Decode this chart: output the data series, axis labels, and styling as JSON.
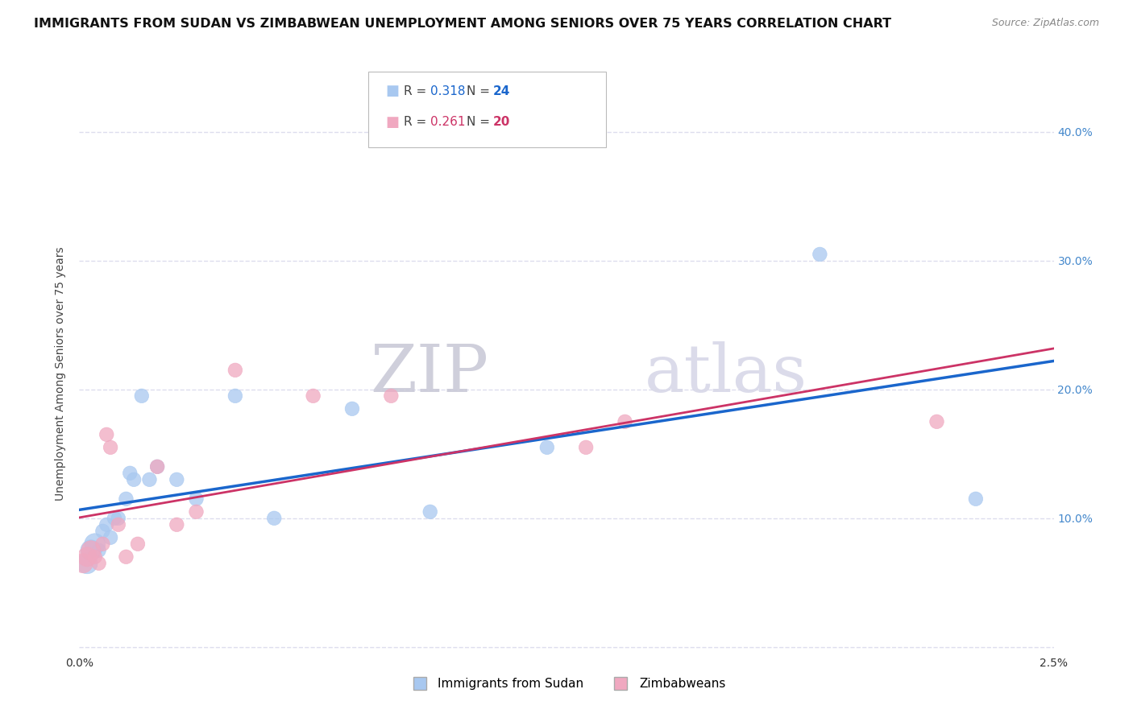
{
  "title": "IMMIGRANTS FROM SUDAN VS ZIMBABWEAN UNEMPLOYMENT AMONG SENIORS OVER 75 YEARS CORRELATION CHART",
  "source": "Source: ZipAtlas.com",
  "ylabel": "Unemployment Among Seniors over 75 years",
  "legend_labels": [
    "Immigrants from Sudan",
    "Zimbabweans"
  ],
  "blue_r": "0.318",
  "blue_n": "24",
  "pink_r": "0.261",
  "pink_n": "20",
  "blue_color": "#A8C8F0",
  "pink_color": "#F0A8C0",
  "blue_line_color": "#1A66CC",
  "pink_line_color": "#CC3366",
  "right_axis_color": "#4488CC",
  "xlim": [
    0.0,
    0.025
  ],
  "ylim": [
    -0.005,
    0.43
  ],
  "yticks": [
    0.0,
    0.1,
    0.2,
    0.3,
    0.4
  ],
  "blue_scatter_x": [
    0.0002,
    0.0003,
    0.0004,
    0.0005,
    0.0006,
    0.0007,
    0.0008,
    0.0009,
    0.001,
    0.0012,
    0.0013,
    0.0014,
    0.0016,
    0.0018,
    0.002,
    0.0025,
    0.003,
    0.004,
    0.005,
    0.007,
    0.009,
    0.012,
    0.019,
    0.023
  ],
  "blue_scatter_y": [
    0.065,
    0.075,
    0.08,
    0.075,
    0.09,
    0.095,
    0.085,
    0.1,
    0.1,
    0.115,
    0.135,
    0.13,
    0.195,
    0.13,
    0.14,
    0.13,
    0.115,
    0.195,
    0.1,
    0.185,
    0.105,
    0.155,
    0.305,
    0.115
  ],
  "pink_scatter_x": [
    0.0001,
    0.0002,
    0.0003,
    0.0004,
    0.0005,
    0.0006,
    0.0007,
    0.0008,
    0.001,
    0.0012,
    0.0015,
    0.002,
    0.0025,
    0.003,
    0.004,
    0.006,
    0.008,
    0.013,
    0.014,
    0.022
  ],
  "pink_scatter_y": [
    0.065,
    0.07,
    0.075,
    0.07,
    0.065,
    0.08,
    0.165,
    0.155,
    0.095,
    0.07,
    0.08,
    0.14,
    0.095,
    0.105,
    0.215,
    0.195,
    0.195,
    0.155,
    0.175,
    0.175
  ],
  "background_color": "#FFFFFF",
  "grid_color": "#DDDDEE",
  "watermark_zip": "ZIP",
  "watermark_atlas": "atlas",
  "title_fontsize": 11.5,
  "axis_label_fontsize": 10,
  "tick_fontsize": 10
}
